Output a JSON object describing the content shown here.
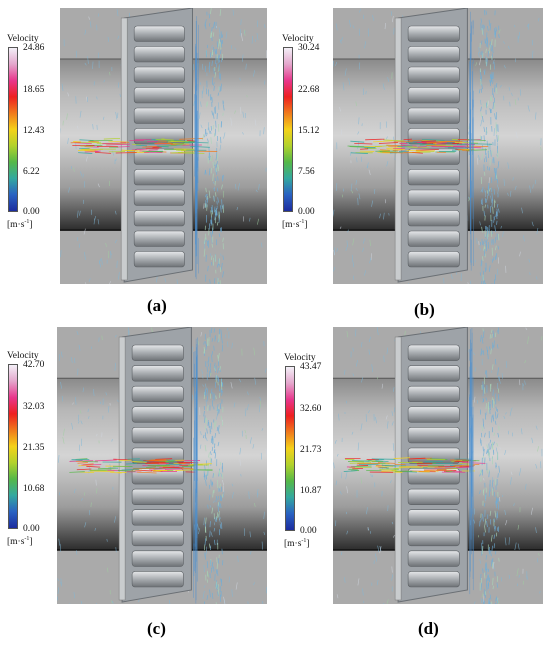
{
  "colors": {
    "colormap": [
      "#f3f0f7",
      "#e4a6cc",
      "#e8368c",
      "#ee2020",
      "#f07a1c",
      "#f4d21a",
      "#b2d22c",
      "#55b848",
      "#33a8a0",
      "#2a62c2",
      "#1c2c9e"
    ],
    "background_rim": "#aaaaaa",
    "impeller": "#b8bcc0"
  },
  "panels": [
    {
      "caption": "(a)",
      "legend": {
        "title": "Velocity",
        "ticks": [
          "24.86",
          "18.65",
          "12.43",
          "6.22",
          "0.00"
        ],
        "units_base": "[m·s",
        "units_exp": "-1",
        "units_close": "]"
      }
    },
    {
      "caption": "(b)",
      "legend": {
        "title": "Velocity",
        "ticks": [
          "30.24",
          "22.68",
          "15.12",
          "7.56",
          "0.00"
        ],
        "units_base": "[m·s",
        "units_exp": "-1",
        "units_close": "]"
      }
    },
    {
      "caption": "(c)",
      "legend": {
        "title": "Velocity",
        "ticks": [
          "42.70",
          "32.03",
          "21.35",
          "10.68",
          "0.00"
        ],
        "units_base": "[m·s",
        "units_exp": "-1",
        "units_close": "]"
      }
    },
    {
      "caption": "(d)",
      "legend": {
        "title": "Velocity",
        "ticks": [
          "43.47",
          "32.60",
          "21.73",
          "10.87",
          "0.00"
        ],
        "units_base": "[m·s",
        "units_exp": "-1",
        "units_close": "]"
      }
    }
  ]
}
